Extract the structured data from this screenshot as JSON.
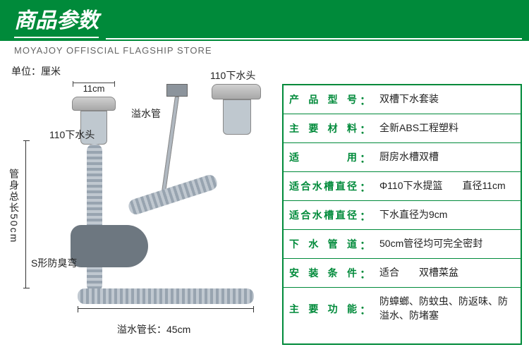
{
  "header": {
    "title": "商品参数",
    "subtitle": "MOYAJOY OFFISCIAL FLAGSHIP STORE"
  },
  "colors": {
    "brand": "#008a3a",
    "text": "#222222",
    "subtext": "#666666"
  },
  "diagram": {
    "unit_label": "单位：厘米",
    "dimensions": {
      "top_width": "11cm",
      "total_length_label": "管身总长50cm",
      "overflow_len": "溢水管长：45cm"
    },
    "callouts": {
      "left_drain": "110下水头",
      "overflow_tube": "溢水管",
      "right_drain": "110下水头",
      "s_trap": "S形防臭弯"
    }
  },
  "spec_rows": [
    {
      "label": "产品型号",
      "value": "双槽下水套装"
    },
    {
      "label": "主要材料",
      "value": "全新ABS工程塑料"
    },
    {
      "label": "适　　用",
      "value": "厨房水槽双槽"
    },
    {
      "label": "适合水槽直径",
      "value": "Φ110下水提篮　　直径11cm"
    },
    {
      "label": "适合水槽直径",
      "value": "下水直径为9cm"
    },
    {
      "label": "下水管道",
      "value": "50cm管径均可完全密封"
    },
    {
      "label": "安装条件",
      "value": "适合　　双槽菜盆"
    },
    {
      "label": "主要功能",
      "value": "防蟑螂、防蚊虫、防返味、防溢水、防堵塞"
    }
  ]
}
